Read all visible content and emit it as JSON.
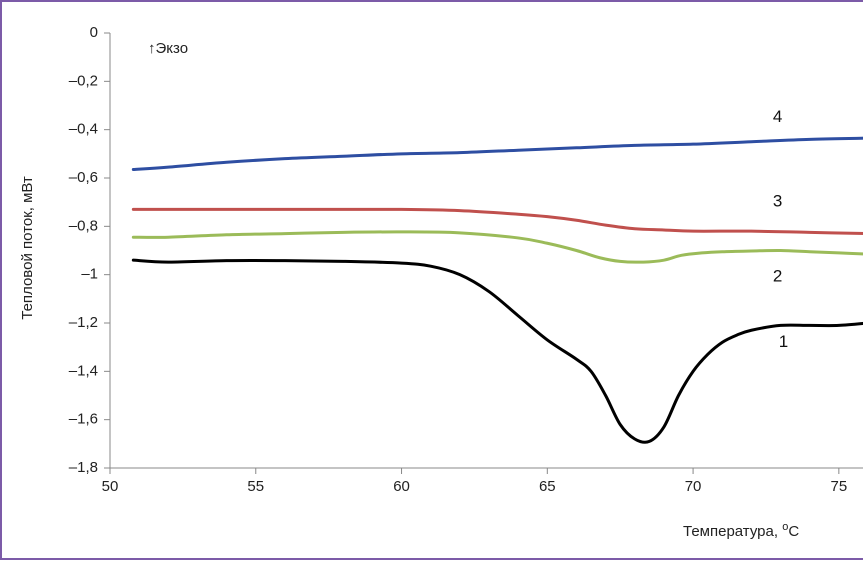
{
  "chart_data": {
    "type": "line",
    "ylabel": "Тепловой поток, мВт",
    "xlabel_main": "Температура, ",
    "xlabel_sup": "o",
    "xlabel_tail": "C",
    "annotation": "↑Экзо",
    "xlim": [
      50,
      76
    ],
    "ylim": [
      -1.8,
      0
    ],
    "x_ticks": [
      {
        "value": 50,
        "label": "50"
      },
      {
        "value": 55,
        "label": "55"
      },
      {
        "value": 60,
        "label": "60"
      },
      {
        "value": 65,
        "label": "65"
      },
      {
        "value": 70,
        "label": "70"
      },
      {
        "value": 75,
        "label": "75"
      }
    ],
    "y_ticks": [
      {
        "value": 0,
        "label": "0"
      },
      {
        "value": -0.2,
        "label": "–0,2"
      },
      {
        "value": -0.4,
        "label": "–0,4"
      },
      {
        "value": -0.6,
        "label": "–0,6"
      },
      {
        "value": -0.8,
        "label": "–0,8"
      },
      {
        "value": -1.0,
        "label": "–1"
      },
      {
        "value": -1.2,
        "label": "–1,2"
      },
      {
        "value": -1.4,
        "label": "–1,4"
      },
      {
        "value": -1.6,
        "label": "–1,6"
      },
      {
        "value": -1.8,
        "label": "–1,8"
      }
    ],
    "grid": false,
    "series": [
      {
        "label": "4",
        "color": "#2e4ea2",
        "label_at": [
          72.9,
          -0.35
        ],
        "x": [
          50.8,
          52,
          54,
          56,
          58,
          60,
          62,
          64,
          66,
          68,
          70,
          72,
          74,
          76
        ],
        "y": [
          -0.565,
          -0.555,
          -0.535,
          -0.52,
          -0.51,
          -0.5,
          -0.495,
          -0.485,
          -0.475,
          -0.465,
          -0.46,
          -0.45,
          -0.44,
          -0.435
        ]
      },
      {
        "label": "3",
        "color": "#c0504d",
        "label_at": [
          72.9,
          -0.7
        ],
        "x": [
          50.8,
          52,
          54,
          56,
          58,
          60,
          62,
          64,
          65,
          66,
          67,
          68,
          69,
          70,
          72,
          74,
          76
        ],
        "y": [
          -0.73,
          -0.73,
          -0.73,
          -0.73,
          -0.73,
          -0.73,
          -0.735,
          -0.75,
          -0.76,
          -0.775,
          -0.795,
          -0.81,
          -0.815,
          -0.82,
          -0.82,
          -0.825,
          -0.83
        ]
      },
      {
        "label": "2",
        "color": "#9bbb59",
        "label_at": [
          72.9,
          -1.01
        ],
        "x": [
          50.8,
          52,
          54,
          56,
          58,
          60,
          62,
          64,
          65,
          66,
          66.8,
          67.5,
          68.3,
          69,
          69.6,
          70.3,
          71,
          72,
          73,
          74,
          75,
          76
        ],
        "y": [
          -0.845,
          -0.845,
          -0.835,
          -0.83,
          -0.825,
          -0.823,
          -0.827,
          -0.848,
          -0.87,
          -0.9,
          -0.93,
          -0.945,
          -0.948,
          -0.94,
          -0.92,
          -0.91,
          -0.905,
          -0.902,
          -0.9,
          -0.905,
          -0.91,
          -0.915
        ]
      },
      {
        "label": "1",
        "color": "#000000",
        "label_at": [
          73.1,
          -1.28
        ],
        "x": [
          50.8,
          52,
          54,
          56,
          58,
          60,
          61,
          62,
          63,
          64,
          65,
          66,
          66.5,
          67,
          67.5,
          68,
          68.5,
          69,
          69.5,
          70,
          70.5,
          71,
          71.5,
          72,
          73,
          74,
          75,
          76
        ],
        "y": [
          -0.94,
          -0.948,
          -0.942,
          -0.942,
          -0.945,
          -0.952,
          -0.965,
          -1.0,
          -1.07,
          -1.17,
          -1.27,
          -1.35,
          -1.4,
          -1.5,
          -1.62,
          -1.68,
          -1.69,
          -1.63,
          -1.5,
          -1.4,
          -1.33,
          -1.28,
          -1.25,
          -1.23,
          -1.21,
          -1.21,
          -1.21,
          -1.2
        ]
      }
    ]
  }
}
